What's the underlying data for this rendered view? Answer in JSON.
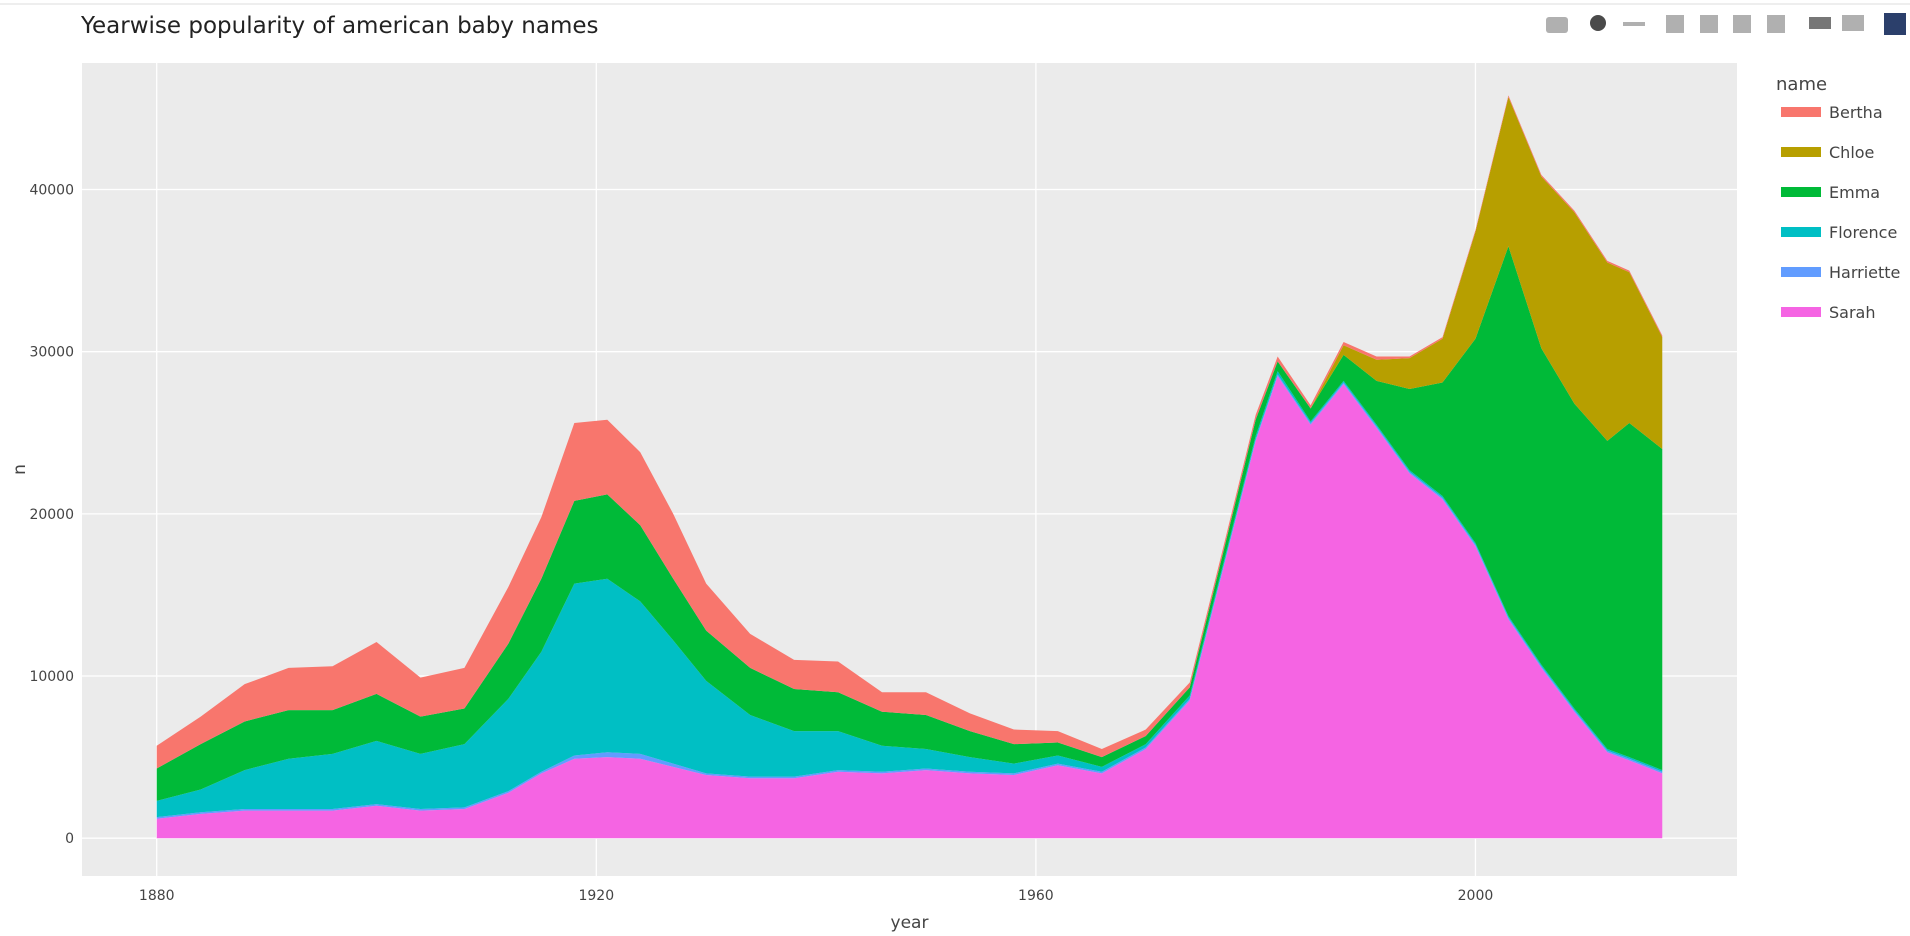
{
  "chart_data": {
    "type": "area",
    "stacked": true,
    "title": "Yearwise popularity of american baby names",
    "x_label": "year",
    "y_label": "n",
    "legend_title": "name",
    "x": [
      1880,
      1884,
      1888,
      1892,
      1896,
      1900,
      1904,
      1908,
      1912,
      1915,
      1918,
      1921,
      1924,
      1927,
      1930,
      1934,
      1938,
      1942,
      1946,
      1950,
      1954,
      1958,
      1962,
      1966,
      1970,
      1974,
      1977,
      1980,
      1982,
      1985,
      1988,
      1991,
      1994,
      1997,
      2000,
      2003,
      2006,
      2009,
      2012,
      2014,
      2017
    ],
    "series": [
      {
        "name": "Bertha",
        "color": "#f8766d",
        "values": [
          1400,
          1700,
          2300,
          2600,
          2700,
          3200,
          2400,
          2500,
          3500,
          3800,
          4800,
          4600,
          4500,
          4000,
          2900,
          2100,
          1800,
          1900,
          1200,
          1400,
          1100,
          900,
          700,
          500,
          400,
          300,
          300,
          300,
          300,
          200,
          200,
          200,
          100,
          100,
          100,
          100,
          100,
          100,
          100,
          100,
          100
        ]
      },
      {
        "name": "Chloe",
        "color": "#b79f00",
        "values": [
          0,
          0,
          0,
          0,
          0,
          0,
          0,
          0,
          0,
          0,
          0,
          0,
          0,
          0,
          0,
          0,
          0,
          0,
          0,
          0,
          0,
          0,
          0,
          0,
          0,
          0,
          0,
          0,
          0,
          0,
          600,
          1300,
          1900,
          2700,
          6600,
          9200,
          10600,
          11800,
          11000,
          9300,
          6900
        ]
      },
      {
        "name": "Emma",
        "color": "#00ba38",
        "values": [
          2000,
          2800,
          3000,
          3000,
          2700,
          2900,
          2300,
          2200,
          3400,
          4500,
          5100,
          5200,
          4700,
          3800,
          3100,
          2900,
          2600,
          2400,
          2100,
          2100,
          1600,
          1200,
          800,
          600,
          500,
          500,
          700,
          1000,
          600,
          800,
          1600,
          2700,
          5000,
          7000,
          12600,
          22800,
          19500,
          18800,
          19000,
          20600,
          19800
        ]
      },
      {
        "name": "Florence",
        "color": "#00bfc4",
        "values": [
          1000,
          1400,
          2400,
          3100,
          3400,
          3900,
          3400,
          3900,
          5700,
          7400,
          10600,
          10700,
          9400,
          7600,
          5700,
          3800,
          2800,
          2400,
          1600,
          1200,
          900,
          600,
          500,
          300,
          200,
          200,
          200,
          200,
          200,
          100,
          100,
          100,
          100,
          100,
          100,
          100,
          100,
          100,
          100,
          100,
          100
        ]
      },
      {
        "name": "Harriette",
        "color": "#619cff",
        "values": [
          100,
          100,
          100,
          100,
          100,
          100,
          100,
          100,
          100,
          100,
          200,
          300,
          300,
          200,
          100,
          100,
          100,
          100,
          100,
          100,
          100,
          100,
          100,
          100,
          100,
          100,
          100,
          100,
          100,
          100,
          100,
          100,
          100,
          100,
          100,
          100,
          100,
          100,
          100,
          100,
          100
        ]
      },
      {
        "name": "Sarah",
        "color": "#f564e3",
        "values": [
          1200,
          1500,
          1700,
          1700,
          1700,
          2000,
          1700,
          1800,
          2800,
          4000,
          4900,
          5000,
          4900,
          4400,
          3900,
          3700,
          3700,
          4100,
          4000,
          4200,
          4000,
          3900,
          4500,
          4000,
          5500,
          8500,
          16500,
          24500,
          28500,
          25500,
          28000,
          25300,
          22500,
          20900,
          18000,
          13500,
          10500,
          7800,
          5300,
          4800,
          4000
        ]
      }
    ],
    "xlim": [
      1873.2,
      2023.8
    ],
    "ylim": [
      -2330,
      47800
    ],
    "xticks": [
      1880,
      1920,
      1960,
      2000
    ],
    "yticks": [
      0,
      10000,
      20000,
      30000,
      40000
    ],
    "grid": true,
    "legend_position": "right"
  }
}
